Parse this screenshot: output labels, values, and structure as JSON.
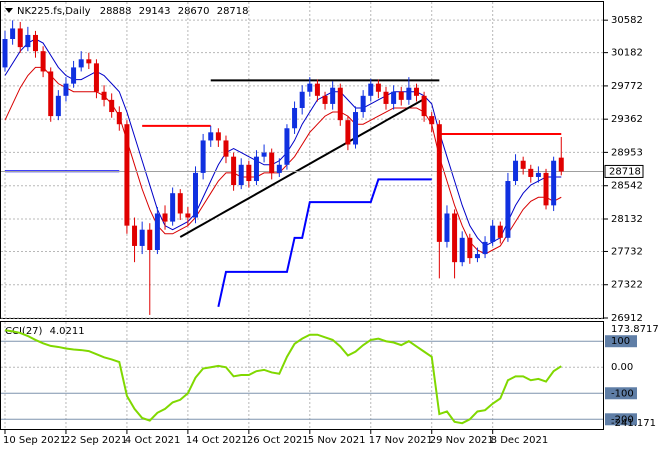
{
  "chart_data": [
    {
      "type": "candlestick",
      "title": "NK225.fs,Daily",
      "categories": [
        "10 Sep 2021",
        null,
        null,
        null,
        null,
        null,
        null,
        null,
        "22 Sep 2021",
        null,
        null,
        null,
        null,
        null,
        null,
        null,
        "4 Oct 2021",
        null,
        null,
        null,
        null,
        null,
        null,
        null,
        "14 Oct 2021",
        null,
        null,
        null,
        null,
        null,
        null,
        null,
        "26 Oct 2021",
        null,
        null,
        null,
        null,
        null,
        null,
        null,
        "5 Nov 2021",
        null,
        null,
        null,
        null,
        null,
        null,
        null,
        "17 Nov 2021",
        null,
        null,
        null,
        null,
        null,
        null,
        null,
        "29 Nov 2021",
        null,
        null,
        null,
        null,
        null,
        null,
        null,
        "8 Dec 2021",
        null,
        null,
        null,
        null,
        null,
        null,
        null,
        null,
        null
      ],
      "open": [
        30000,
        30350,
        30480,
        30250,
        30400,
        30200,
        29950,
        29400,
        29650,
        29800,
        30000,
        30100,
        30050,
        29700,
        29600,
        29450,
        29300,
        28050,
        27800,
        28000,
        27750,
        28200,
        28100,
        28450,
        28200,
        28150,
        28700,
        29100,
        29200,
        29100,
        28900,
        28550,
        28800,
        28600,
        28900,
        28950,
        28700,
        28800,
        29250,
        29500,
        29700,
        29800,
        29650,
        29550,
        29750,
        29350,
        29050,
        29450,
        29650,
        29800,
        29700,
        29550,
        29700,
        29600,
        29750,
        29650,
        29400,
        29300,
        27850,
        28200,
        27600,
        27900,
        27650,
        27700,
        27850,
        28050,
        27900,
        28600,
        28850,
        28750,
        28650,
        28700,
        28300,
        28888
      ],
      "high": [
        30450,
        30580,
        30560,
        30500,
        30450,
        30260,
        30000,
        29720,
        29880,
        30080,
        30200,
        30180,
        30100,
        29780,
        29680,
        29520,
        29350,
        28150,
        28100,
        28080,
        28280,
        28300,
        28520,
        28500,
        28280,
        28780,
        29180,
        29280,
        29250,
        29160,
        28950,
        28880,
        28850,
        28980,
        29050,
        29000,
        28880,
        29300,
        29580,
        29780,
        29880,
        29850,
        29700,
        29830,
        29800,
        29400,
        29520,
        29720,
        29860,
        29850,
        29760,
        29780,
        29760,
        29880,
        29800,
        29700,
        29450,
        29350,
        28300,
        28250,
        27980,
        27950,
        27780,
        27920,
        28120,
        28100,
        28700,
        28930,
        28900,
        28800,
        28780,
        28750,
        28900,
        29143
      ],
      "low": [
        29950,
        30280,
        30180,
        30200,
        30120,
        29880,
        29330,
        29350,
        29580,
        29750,
        29950,
        29980,
        29620,
        29520,
        29380,
        29220,
        27950,
        27600,
        27700,
        26950,
        27700,
        28000,
        28050,
        28120,
        28050,
        28080,
        28620,
        29020,
        29020,
        28820,
        28480,
        28500,
        28520,
        28550,
        28830,
        28620,
        28650,
        28740,
        29180,
        29420,
        29640,
        29580,
        29480,
        29480,
        29280,
        28980,
        29000,
        29380,
        29580,
        29620,
        29480,
        29480,
        29530,
        29540,
        29580,
        29330,
        29200,
        27400,
        27780,
        27400,
        27550,
        27580,
        27600,
        27650,
        27800,
        27830,
        27850,
        28550,
        28680,
        28580,
        28580,
        28250,
        28230,
        28670
      ],
      "close": [
        30350,
        30480,
        30250,
        30400,
        30200,
        29950,
        29400,
        29650,
        29800,
        30000,
        30100,
        30050,
        29700,
        29600,
        29450,
        29300,
        28050,
        27800,
        28000,
        27750,
        28200,
        28100,
        28450,
        28200,
        28150,
        28700,
        29100,
        29200,
        29100,
        28900,
        28550,
        28800,
        28600,
        28900,
        28950,
        28700,
        28800,
        29250,
        29500,
        29700,
        29800,
        29650,
        29550,
        29750,
        29350,
        29050,
        29450,
        29650,
        29800,
        29700,
        29550,
        29700,
        29600,
        29750,
        29650,
        29400,
        29300,
        27850,
        28200,
        27600,
        27900,
        27650,
        27700,
        27850,
        28050,
        27900,
        28600,
        28850,
        28750,
        28650,
        28700,
        28300,
        28850,
        28718
      ],
      "up_color": "#1030e0",
      "down_color": "#e00000",
      "overlays": [
        {
          "color": "#0000c8",
          "values": [
            29900,
            30050,
            30200,
            30300,
            30350,
            30300,
            30150,
            30000,
            29900,
            29850,
            29850,
            29900,
            29950,
            29900,
            29800,
            29700,
            29450,
            29150,
            28850,
            28550,
            28250,
            28050,
            28000,
            28050,
            28100,
            28200,
            28400,
            28600,
            28800,
            28950,
            29000,
            28950,
            28900,
            28850,
            28800,
            28800,
            28850,
            28950,
            29100,
            29300,
            29450,
            29600,
            29650,
            29700,
            29700,
            29600,
            29500,
            29500,
            29550,
            29600,
            29650,
            29700,
            29700,
            29700,
            29700,
            29650,
            29550,
            29200,
            28900,
            28600,
            28300,
            28050,
            27900,
            27800,
            27850,
            27900,
            28100,
            28300,
            28450,
            28550,
            28600,
            28650,
            28650,
            28650
          ]
        },
        {
          "color": "#d80000",
          "values": [
            29350,
            29550,
            29750,
            29900,
            30000,
            30000,
            29900,
            29800,
            29750,
            29700,
            29700,
            29700,
            29700,
            29650,
            29550,
            29400,
            29100,
            28800,
            28500,
            28250,
            28050,
            27950,
            27950,
            28000,
            28050,
            28150,
            28300,
            28450,
            28600,
            28700,
            28700,
            28650,
            28650,
            28650,
            28700,
            28700,
            28700,
            28800,
            28900,
            29050,
            29200,
            29300,
            29400,
            29450,
            29450,
            29400,
            29300,
            29300,
            29350,
            29400,
            29450,
            29500,
            29500,
            29500,
            29500,
            29450,
            29300,
            28900,
            28600,
            28300,
            28050,
            27850,
            27750,
            27700,
            27750,
            27800,
            27950,
            28100,
            28250,
            28350,
            28400,
            28400,
            28350,
            28400
          ]
        },
        {
          "color": "#ff0000",
          "values": [
            null,
            null,
            null,
            null,
            null,
            null,
            null,
            null,
            null,
            null,
            null,
            null,
            null,
            null,
            null,
            null,
            null,
            null,
            29280,
            29280,
            29280,
            29280,
            29280,
            29280,
            29280,
            29280,
            29280,
            29280,
            null,
            null,
            null,
            null,
            null,
            null,
            null,
            null,
            null,
            null,
            null,
            null,
            null,
            null,
            null,
            null,
            null,
            null,
            null,
            null,
            null,
            null,
            null,
            null,
            null,
            null,
            null,
            null,
            null,
            29180,
            29180,
            29180,
            29180,
            29180,
            29180,
            29180,
            29180,
            29180,
            29180,
            29180,
            29180,
            29180,
            29180,
            29180,
            29180,
            29180
          ]
        },
        {
          "color": "#0000ff",
          "values": [
            28720,
            28720,
            28720,
            28720,
            28720,
            28720,
            28720,
            28720,
            28720,
            28720,
            28720,
            28720,
            28720,
            28720,
            28720,
            28720,
            null,
            null,
            null,
            null,
            null,
            null,
            null,
            null,
            null,
            null,
            null,
            null,
            27050,
            27480,
            27480,
            27480,
            27480,
            27480,
            27480,
            27480,
            27480,
            27480,
            27900,
            27900,
            28340,
            28340,
            28340,
            28340,
            28340,
            28340,
            28340,
            28340,
            28340,
            28620,
            28620,
            28620,
            28620,
            28620,
            28620,
            28620,
            28620,
            null,
            null,
            null,
            null,
            null,
            null,
            null,
            null,
            null,
            null,
            null,
            null,
            null,
            null,
            null,
            null,
            null
          ]
        },
        {
          "color": "#000000",
          "values": [
            null,
            null,
            null,
            null,
            null,
            null,
            null,
            null,
            null,
            null,
            null,
            null,
            null,
            null,
            null,
            null,
            null,
            null,
            null,
            null,
            null,
            null,
            null,
            null,
            null,
            null,
            null,
            29840,
            29840,
            29840,
            29840,
            29840,
            29840,
            29840,
            29840,
            29840,
            29840,
            29840,
            29840,
            29840,
            29840,
            29840,
            29840,
            29840,
            29840,
            29840,
            29840,
            29840,
            29840,
            29840,
            29840,
            29840,
            29840,
            29840,
            29840,
            29840,
            29840,
            29840,
            null,
            null,
            null,
            null,
            null,
            null,
            null,
            null,
            null,
            null,
            null,
            null,
            null,
            null,
            null,
            null
          ]
        },
        {
          "color": "#000000",
          "values": [
            null,
            null,
            null,
            null,
            null,
            null,
            null,
            null,
            null,
            null,
            null,
            null,
            null,
            null,
            null,
            null,
            null,
            null,
            null,
            null,
            null,
            null,
            null,
            27910,
            27963,
            28016,
            28069,
            28122,
            28176,
            28229,
            28282,
            28335,
            28388,
            28441,
            28494,
            28548,
            28601,
            28654,
            28707,
            28760,
            28813,
            28866,
            28919,
            28973,
            29026,
            29079,
            29132,
            29185,
            29238,
            29291,
            29345,
            29398,
            29451,
            29504,
            29557,
            29610,
            null,
            null,
            null,
            null,
            null,
            null,
            null,
            null,
            null,
            null,
            null,
            null,
            null,
            null,
            null,
            null,
            null,
            null
          ]
        }
      ],
      "ylim": [
        26912,
        30806
      ],
      "yticks": [
        30582,
        30182,
        29772,
        29362,
        28953,
        28542,
        28132,
        27732,
        27322,
        26912
      ],
      "grid": true
    },
    {
      "type": "line",
      "title": "CCI(27)",
      "color": "#80d800",
      "values": [
        142,
        138,
        132,
        120,
        105,
        92,
        82,
        78,
        72,
        68,
        66,
        62,
        50,
        38,
        30,
        20,
        -110,
        -160,
        -195,
        -205,
        -175,
        -160,
        -135,
        -125,
        -100,
        -40,
        -5,
        0,
        5,
        0,
        -35,
        -30,
        -30,
        -15,
        -10,
        -20,
        -25,
        40,
        90,
        110,
        125,
        125,
        115,
        105,
        80,
        45,
        60,
        85,
        105,
        110,
        100,
        95,
        85,
        100,
        80,
        60,
        40,
        -180,
        -170,
        -210,
        -215,
        -200,
        -170,
        -165,
        -140,
        -120,
        -50,
        -35,
        -35,
        -50,
        -45,
        -55,
        -15,
        4.0211
      ],
      "ylim": [
        -241.171,
        173.8717
      ],
      "yticks": [
        100,
        {
          "value": 0,
          "label": "0.00"
        },
        -100,
        -200
      ]
    }
  ]
}
